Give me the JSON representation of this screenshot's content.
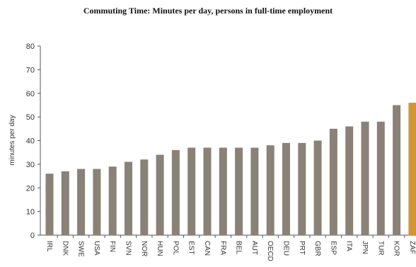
{
  "chart_data": {
    "type": "bar",
    "title": "Commuting Time: Minutes per day, persons in full-time employment",
    "ylabel": "minutes per day",
    "xlabel": "",
    "ylim": [
      0,
      80
    ],
    "yticks": [
      0,
      10,
      20,
      30,
      40,
      50,
      60,
      70,
      80
    ],
    "grid": false,
    "categories": [
      "IRL",
      "DNK",
      "SWE",
      "USA",
      "FIN",
      "SVN",
      "NOR",
      "HUN",
      "POL",
      "EST",
      "CAN",
      "FRA",
      "BEL",
      "AUT",
      "OECD",
      "DEU",
      "PRT",
      "GBR",
      "ESP",
      "ITA",
      "JPN",
      "TUR",
      "KOR",
      "ZAF"
    ],
    "values": [
      26,
      27,
      28,
      28,
      29,
      31,
      32,
      34,
      36,
      37,
      37,
      37,
      37,
      37,
      38,
      39,
      39,
      40,
      45,
      46,
      48,
      48,
      55,
      56
    ],
    "bar_color": "#8a8177",
    "highlight_color": "#d19436",
    "highlight_index": 23
  }
}
